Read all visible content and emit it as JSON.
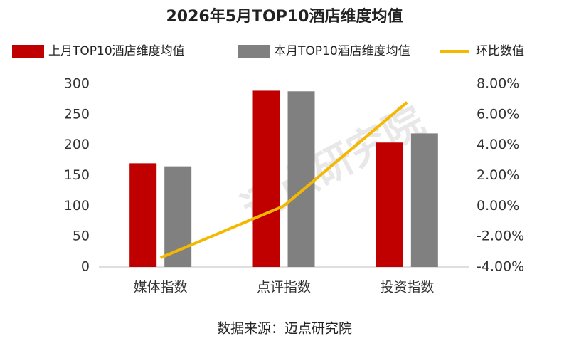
{
  "chart_data": {
    "type": "bar",
    "title": "2026年5月TOP10酒店维度均值",
    "categories": [
      "媒体指数",
      "点评指数",
      "投资指数"
    ],
    "series": [
      {
        "name": "上月TOP10酒店维度均值",
        "color": "#c00000",
        "values": [
          170,
          289,
          204
        ]
      },
      {
        "name": "本月TOP10酒店维度均值",
        "color": "#808080",
        "values": [
          165,
          288,
          219
        ]
      },
      {
        "name": "环比数值",
        "color": "#f5b800",
        "type": "line",
        "axis": "y2",
        "values": [
          -3.4,
          0.0,
          6.8
        ]
      }
    ],
    "ylim": [
      0,
      300
    ],
    "yticks": [
      0,
      50,
      100,
      150,
      200,
      250,
      300
    ],
    "y2lim": [
      -4,
      8
    ],
    "y2ticks": [
      {
        "value": -4,
        "label": "-4.00%"
      },
      {
        "value": -2,
        "label": "-2.00%"
      },
      {
        "value": 0,
        "label": "0.00%"
      },
      {
        "value": 2,
        "label": "2.00%"
      },
      {
        "value": 4,
        "label": "4.00%"
      },
      {
        "value": 6,
        "label": "6.00%"
      },
      {
        "value": 8,
        "label": "8.00%"
      }
    ],
    "legend": "top",
    "grid": false,
    "watermark": "迈点研究院",
    "source": "数据来源：迈点研究院"
  }
}
